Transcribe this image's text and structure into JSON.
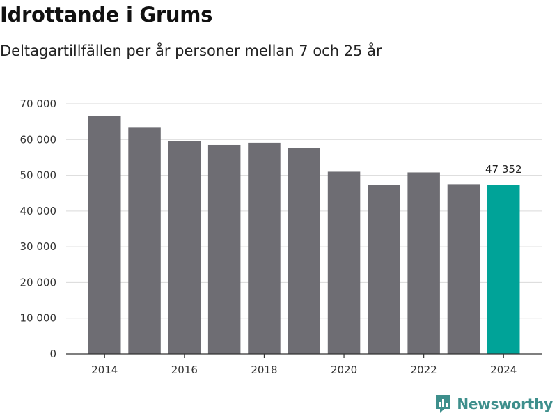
{
  "title": "Idrottande i Grums",
  "subtitle": "Deltagartillfällen per år personer mellan 7 och 25 år",
  "brand": "Newsworthy",
  "colors": {
    "bar": "#6e6d73",
    "highlight": "#00a398",
    "grid": "#d9d9d9",
    "axis": "#333333",
    "brand": "#3e8f8c"
  },
  "chart_data": {
    "type": "bar",
    "categories": [
      "2014",
      "2015",
      "2016",
      "2017",
      "2018",
      "2019",
      "2020",
      "2021",
      "2022",
      "2023",
      "2024"
    ],
    "values": [
      66600,
      63300,
      59500,
      58500,
      59100,
      57600,
      51000,
      47300,
      50800,
      47500,
      47352
    ],
    "highlight_index": 10,
    "data_labels": [
      {
        "index": 10,
        "text": "47 352"
      }
    ],
    "x_tick_labels": [
      "2014",
      "2016",
      "2018",
      "2020",
      "2022",
      "2024"
    ],
    "y_ticks": [
      0,
      10000,
      20000,
      30000,
      40000,
      50000,
      60000,
      70000
    ],
    "y_tick_labels": [
      "0",
      "10 000",
      "20 000",
      "30 000",
      "40 000",
      "50 000",
      "60 000",
      "70 000"
    ],
    "ylim": [
      0,
      70000
    ],
    "grid": true
  }
}
